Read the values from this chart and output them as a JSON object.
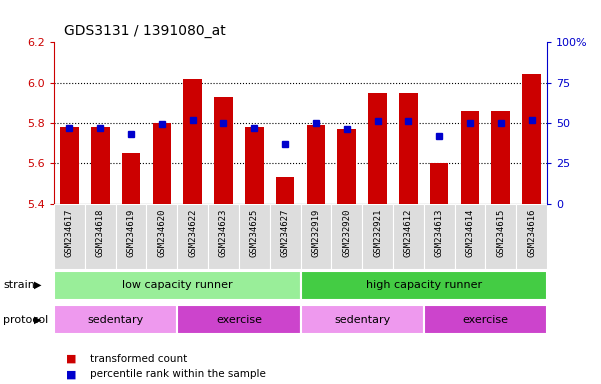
{
  "title": "GDS3131 / 1391080_at",
  "samples": [
    "GSM234617",
    "GSM234618",
    "GSM234619",
    "GSM234620",
    "GSM234622",
    "GSM234623",
    "GSM234625",
    "GSM234627",
    "GSM232919",
    "GSM232920",
    "GSM232921",
    "GSM234612",
    "GSM234613",
    "GSM234614",
    "GSM234615",
    "GSM234616"
  ],
  "transformed_count": [
    5.78,
    5.78,
    5.65,
    5.8,
    6.02,
    5.93,
    5.78,
    5.53,
    5.79,
    5.77,
    5.95,
    5.95,
    5.6,
    5.86,
    5.86,
    6.04
  ],
  "percentile_rank": [
    47,
    47,
    43,
    49,
    52,
    50,
    47,
    37,
    50,
    46,
    51,
    51,
    42,
    50,
    50,
    52
  ],
  "ylim_left": [
    5.4,
    6.2
  ],
  "ylim_right": [
    0,
    100
  ],
  "yticks_left": [
    5.4,
    5.6,
    5.8,
    6.0,
    6.2
  ],
  "yticks_right": [
    0,
    25,
    50,
    75,
    100
  ],
  "bar_color": "#cc0000",
  "marker_color": "#0000cc",
  "bar_bottom": 5.4,
  "strain_groups": [
    {
      "label": "low capacity runner",
      "start": 0,
      "end": 8,
      "color": "#99ee99"
    },
    {
      "label": "high capacity runner",
      "start": 8,
      "end": 16,
      "color": "#44cc44"
    }
  ],
  "protocol_groups": [
    {
      "label": "sedentary",
      "start": 0,
      "end": 4,
      "color": "#ee99ee"
    },
    {
      "label": "exercise",
      "start": 4,
      "end": 8,
      "color": "#cc44cc"
    },
    {
      "label": "sedentary",
      "start": 8,
      "end": 12,
      "color": "#ee99ee"
    },
    {
      "label": "exercise",
      "start": 12,
      "end": 16,
      "color": "#cc44cc"
    }
  ],
  "legend_items": [
    {
      "label": "transformed count",
      "color": "#cc0000"
    },
    {
      "label": "percentile rank within the sample",
      "color": "#0000cc"
    }
  ],
  "strain_label": "strain",
  "protocol_label": "protocol",
  "background_color": "#ffffff",
  "plot_bg_color": "#ffffff",
  "tick_label_color_left": "#cc0000",
  "tick_label_color_right": "#0000cc",
  "xtick_bg_color": "#dddddd"
}
